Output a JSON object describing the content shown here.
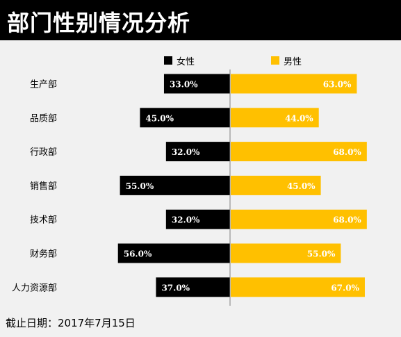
{
  "title": "部门性别情况分析",
  "footer": "截止日期：2017年7月15日",
  "colors": {
    "female": "#000000",
    "male": "#ffc000",
    "background": "#f1f1f1",
    "axis": "#808080"
  },
  "chart_data": {
    "type": "bar",
    "orientation": "horizontal-diverging",
    "categories": [
      "生产部",
      "品质部",
      "行政部",
      "销售部",
      "技术部",
      "财务部",
      "人力资源部"
    ],
    "series": [
      {
        "name": "女性",
        "values": [
          33.0,
          45.0,
          32.0,
          55.0,
          32.0,
          56.0,
          37.0
        ],
        "labels": [
          "33.0%",
          "45.0%",
          "32.0%",
          "55.0%",
          "32.0%",
          "56.0%",
          "37.0%"
        ]
      },
      {
        "name": "男性",
        "values": [
          63.0,
          44.0,
          68.0,
          45.0,
          68.0,
          55.0,
          67.0
        ],
        "labels": [
          "63.0%",
          "44.0%",
          "68.0%",
          "45.0%",
          "68.0%",
          "55.0%",
          "67.0%"
        ]
      }
    ],
    "legend_position": "top-center",
    "grid": false,
    "unit": "%"
  }
}
